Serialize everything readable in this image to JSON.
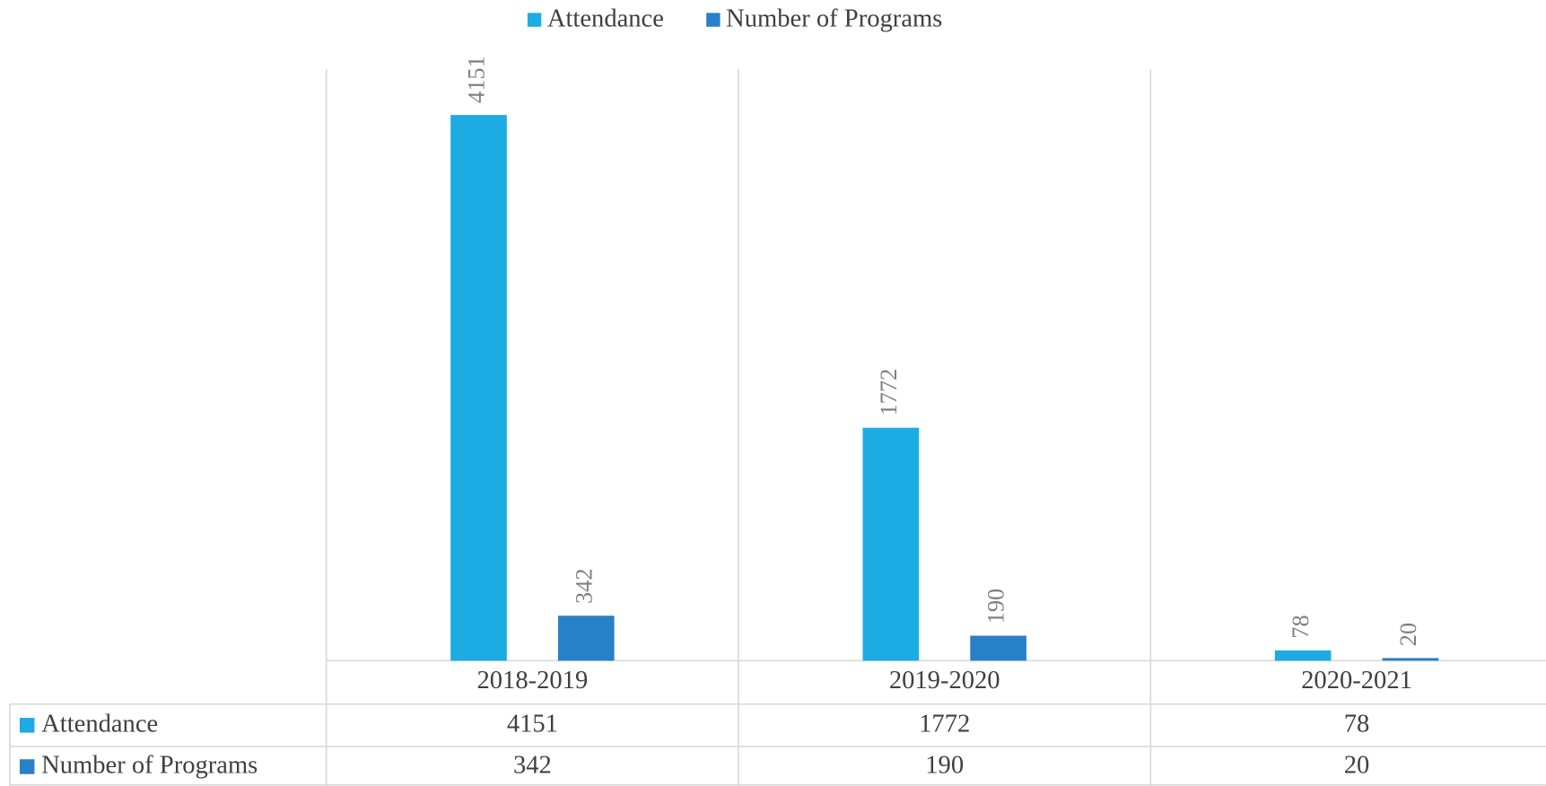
{
  "chart_data": {
    "type": "bar",
    "categories": [
      "2018-2019",
      "2019-2020",
      "2020-2021"
    ],
    "series": [
      {
        "name": "Attendance",
        "color": "#1cabe2",
        "values": [
          4151,
          1772,
          78
        ]
      },
      {
        "name": "Number of Programs",
        "color": "#2880c8",
        "values": [
          342,
          190,
          20
        ]
      }
    ],
    "ylim": [
      0,
      4500
    ],
    "legend": "top",
    "data_table": true
  }
}
